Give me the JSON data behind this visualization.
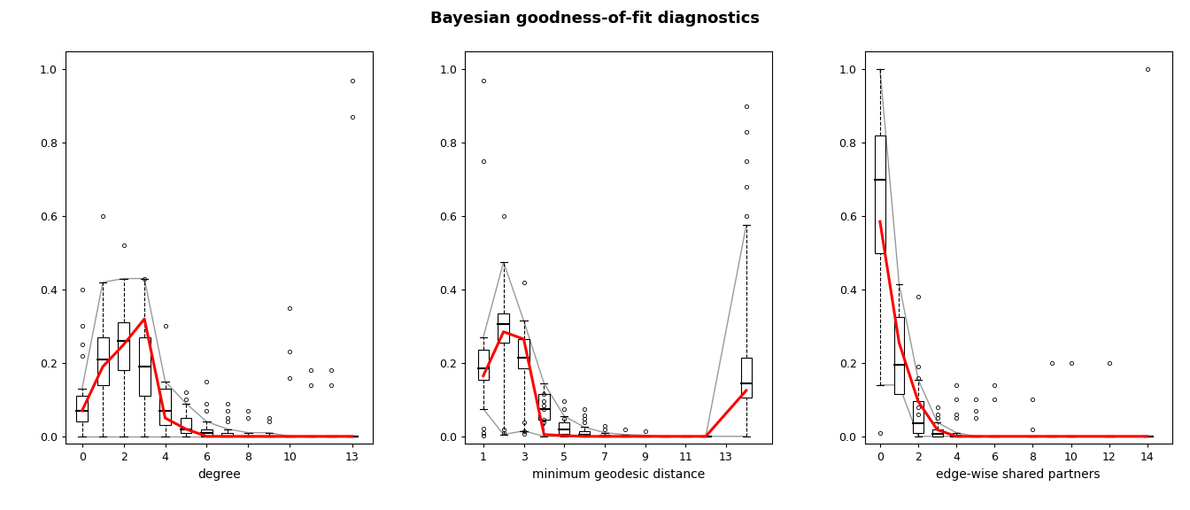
{
  "title": "Bayesian goodness-of-fit diagnostics",
  "title_fontsize": 13,
  "title_fontweight": "bold",
  "plots": [
    {
      "xlabel": "degree",
      "xticks": [
        0,
        2,
        4,
        6,
        8,
        10,
        13
      ],
      "xlim": [
        -0.8,
        14.0
      ],
      "ylim": [
        -0.02,
        1.05
      ],
      "yticks": [
        0.0,
        0.2,
        0.4,
        0.6,
        0.8,
        1.0
      ],
      "boxes": [
        {
          "x": 0,
          "q1": 0.04,
          "median": 0.07,
          "q3": 0.11,
          "whisker_low": 0.0,
          "whisker_high": 0.13,
          "outliers": [
            0.4,
            0.3,
            0.25,
            0.22
          ]
        },
        {
          "x": 1,
          "q1": 0.14,
          "median": 0.21,
          "q3": 0.27,
          "whisker_low": 0.0,
          "whisker_high": 0.42,
          "outliers": [
            0.6
          ]
        },
        {
          "x": 2,
          "q1": 0.18,
          "median": 0.26,
          "q3": 0.31,
          "whisker_low": 0.0,
          "whisker_high": 0.43,
          "outliers": [
            0.52
          ]
        },
        {
          "x": 3,
          "q1": 0.11,
          "median": 0.19,
          "q3": 0.27,
          "whisker_low": 0.0,
          "whisker_high": 0.43,
          "outliers": [
            0.43
          ]
        },
        {
          "x": 4,
          "q1": 0.03,
          "median": 0.07,
          "q3": 0.13,
          "whisker_low": 0.0,
          "whisker_high": 0.15,
          "outliers": [
            0.3
          ]
        },
        {
          "x": 5,
          "q1": 0.01,
          "median": 0.02,
          "q3": 0.05,
          "whisker_low": 0.0,
          "whisker_high": 0.09,
          "outliers": [
            0.12,
            0.1
          ]
        },
        {
          "x": 6,
          "q1": 0.0,
          "median": 0.01,
          "q3": 0.02,
          "whisker_low": 0.0,
          "whisker_high": 0.04,
          "outliers": [
            0.15,
            0.09,
            0.07
          ]
        },
        {
          "x": 7,
          "q1": 0.0,
          "median": 0.0,
          "q3": 0.01,
          "whisker_low": 0.0,
          "whisker_high": 0.02,
          "outliers": [
            0.09,
            0.07,
            0.05,
            0.04
          ]
        },
        {
          "x": 8,
          "q1": 0.0,
          "median": 0.0,
          "q3": 0.0,
          "whisker_low": 0.0,
          "whisker_high": 0.01,
          "outliers": [
            0.07,
            0.05
          ]
        },
        {
          "x": 9,
          "q1": 0.0,
          "median": 0.0,
          "q3": 0.0,
          "whisker_low": 0.0,
          "whisker_high": 0.01,
          "outliers": [
            0.05,
            0.04
          ]
        },
        {
          "x": 10,
          "q1": 0.0,
          "median": 0.0,
          "q3": 0.0,
          "whisker_low": 0.0,
          "whisker_high": 0.0,
          "outliers": [
            0.35,
            0.23,
            0.16
          ]
        },
        {
          "x": 11,
          "q1": 0.0,
          "median": 0.0,
          "q3": 0.0,
          "whisker_low": 0.0,
          "whisker_high": 0.0,
          "outliers": [
            0.18,
            0.14
          ]
        },
        {
          "x": 12,
          "q1": 0.0,
          "median": 0.0,
          "q3": 0.0,
          "whisker_low": 0.0,
          "whisker_high": 0.0,
          "outliers": [
            0.18,
            0.14
          ]
        },
        {
          "x": 13,
          "q1": 0.0,
          "median": 0.0,
          "q3": 0.0,
          "whisker_low": 0.0,
          "whisker_high": 0.0,
          "outliers": [
            0.97,
            0.87
          ]
        }
      ],
      "envelope_x": [
        0,
        1,
        2,
        3,
        4,
        5,
        6,
        7,
        8,
        9,
        10,
        11,
        12,
        13
      ],
      "envelope_upper": [
        0.13,
        0.42,
        0.43,
        0.43,
        0.15,
        0.09,
        0.04,
        0.02,
        0.01,
        0.01,
        0.0,
        0.0,
        0.0,
        0.0
      ],
      "envelope_lower": [
        0.0,
        0.0,
        0.0,
        0.0,
        0.0,
        0.0,
        0.0,
        0.0,
        0.0,
        0.0,
        0.0,
        0.0,
        0.0,
        0.0
      ],
      "red_line_x": [
        0,
        1,
        2,
        3,
        4,
        5,
        6,
        7,
        8,
        9,
        10,
        11,
        12,
        13
      ],
      "red_line_y": [
        0.07,
        0.19,
        0.25,
        0.32,
        0.05,
        0.02,
        0.0,
        0.0,
        0.0,
        0.0,
        0.0,
        0.0,
        0.0,
        0.0
      ]
    },
    {
      "xlabel": "minimum geodesic distance",
      "xticks": [
        1,
        3,
        5,
        7,
        9,
        11,
        13
      ],
      "xlim": [
        0.1,
        15.3
      ],
      "ylim": [
        -0.02,
        1.05
      ],
      "yticks": [
        0.0,
        0.2,
        0.4,
        0.6,
        0.8,
        1.0
      ],
      "boxes": [
        {
          "x": 1,
          "q1": 0.155,
          "median": 0.185,
          "q3": 0.235,
          "whisker_low": 0.075,
          "whisker_high": 0.27,
          "outliers": [
            0.97,
            0.75,
            0.022,
            0.01,
            0.003
          ]
        },
        {
          "x": 2,
          "q1": 0.255,
          "median": 0.305,
          "q3": 0.335,
          "whisker_low": 0.005,
          "whisker_high": 0.475,
          "outliers": [
            0.6,
            0.018,
            0.01
          ]
        },
        {
          "x": 3,
          "q1": 0.185,
          "median": 0.215,
          "q3": 0.265,
          "whisker_low": 0.015,
          "whisker_high": 0.315,
          "outliers": [
            0.42,
            0.038,
            0.015,
            0.008
          ]
        },
        {
          "x": 4,
          "q1": 0.045,
          "median": 0.075,
          "q3": 0.115,
          "whisker_low": 0.0,
          "whisker_high": 0.145,
          "outliers": [
            0.115,
            0.095,
            0.085,
            0.075,
            0.045,
            0.038
          ]
        },
        {
          "x": 5,
          "q1": 0.008,
          "median": 0.018,
          "q3": 0.038,
          "whisker_low": 0.0,
          "whisker_high": 0.055,
          "outliers": [
            0.095,
            0.075,
            0.048
          ]
        },
        {
          "x": 6,
          "q1": 0.0,
          "median": 0.005,
          "q3": 0.015,
          "whisker_low": 0.0,
          "whisker_high": 0.025,
          "outliers": [
            0.075,
            0.058,
            0.048,
            0.038
          ]
        },
        {
          "x": 7,
          "q1": 0.0,
          "median": 0.0,
          "q3": 0.005,
          "whisker_low": 0.0,
          "whisker_high": 0.01,
          "outliers": [
            0.028,
            0.018
          ]
        },
        {
          "x": 8,
          "q1": 0.0,
          "median": 0.0,
          "q3": 0.003,
          "whisker_low": 0.0,
          "whisker_high": 0.005,
          "outliers": [
            0.018
          ]
        },
        {
          "x": 9,
          "q1": 0.0,
          "median": 0.0,
          "q3": 0.0,
          "whisker_low": 0.0,
          "whisker_high": 0.003,
          "outliers": [
            0.015
          ]
        },
        {
          "x": 10,
          "q1": 0.0,
          "median": 0.0,
          "q3": 0.0,
          "whisker_low": 0.0,
          "whisker_high": 0.0,
          "outliers": []
        },
        {
          "x": 11,
          "q1": 0.0,
          "median": 0.0,
          "q3": 0.0,
          "whisker_low": 0.0,
          "whisker_high": 0.0,
          "outliers": []
        },
        {
          "x": 12,
          "q1": 0.0,
          "median": 0.0,
          "q3": 0.0,
          "whisker_low": 0.0,
          "whisker_high": 0.0,
          "outliers": []
        },
        {
          "x": 14,
          "q1": 0.105,
          "median": 0.145,
          "q3": 0.215,
          "whisker_low": 0.0,
          "whisker_high": 0.575,
          "outliers": [
            0.9,
            0.83,
            0.75,
            0.68,
            0.6
          ]
        }
      ],
      "envelope_x": [
        1,
        2,
        3,
        4,
        5,
        6,
        7,
        8,
        9,
        10,
        11,
        12,
        14
      ],
      "envelope_upper": [
        0.27,
        0.475,
        0.315,
        0.145,
        0.055,
        0.025,
        0.01,
        0.005,
        0.003,
        0.0,
        0.0,
        0.0,
        0.575
      ],
      "envelope_lower": [
        0.075,
        0.005,
        0.015,
        0.0,
        0.0,
        0.0,
        0.0,
        0.0,
        0.0,
        0.0,
        0.0,
        0.0,
        0.0
      ],
      "red_line_x": [
        1,
        2,
        3,
        4,
        5,
        6,
        7,
        8,
        9,
        10,
        11,
        12,
        14
      ],
      "red_line_y": [
        0.165,
        0.285,
        0.265,
        0.005,
        0.002,
        0.0,
        0.0,
        0.0,
        0.0,
        0.0,
        0.0,
        0.0,
        0.125
      ]
    },
    {
      "xlabel": "edge-wise shared partners",
      "xticks": [
        0,
        2,
        4,
        6,
        8,
        10,
        12,
        14
      ],
      "xlim": [
        -0.8,
        15.3
      ],
      "ylim": [
        -0.02,
        1.05
      ],
      "yticks": [
        0.0,
        0.2,
        0.4,
        0.6,
        0.8,
        1.0
      ],
      "boxes": [
        {
          "x": 0,
          "q1": 0.5,
          "median": 0.7,
          "q3": 0.82,
          "whisker_low": 0.14,
          "whisker_high": 1.0,
          "outliers": [
            0.01
          ]
        },
        {
          "x": 1,
          "q1": 0.115,
          "median": 0.195,
          "q3": 0.325,
          "whisker_low": 0.14,
          "whisker_high": 0.415,
          "outliers": []
        },
        {
          "x": 2,
          "q1": 0.01,
          "median": 0.035,
          "q3": 0.095,
          "whisker_low": 0.0,
          "whisker_high": 0.155,
          "outliers": [
            0.38,
            0.19,
            0.16,
            0.08,
            0.06
          ]
        },
        {
          "x": 3,
          "q1": 0.0,
          "median": 0.008,
          "q3": 0.018,
          "whisker_low": 0.0,
          "whisker_high": 0.038,
          "outliers": [
            0.08,
            0.06,
            0.05
          ]
        },
        {
          "x": 4,
          "q1": 0.0,
          "median": 0.0,
          "q3": 0.005,
          "whisker_low": 0.0,
          "whisker_high": 0.01,
          "outliers": [
            0.14,
            0.1,
            0.06,
            0.05
          ]
        },
        {
          "x": 5,
          "q1": 0.0,
          "median": 0.0,
          "q3": 0.0,
          "whisker_low": 0.0,
          "whisker_high": 0.0,
          "outliers": [
            0.1,
            0.07,
            0.05
          ]
        },
        {
          "x": 6,
          "q1": 0.0,
          "median": 0.0,
          "q3": 0.0,
          "whisker_low": 0.0,
          "whisker_high": 0.0,
          "outliers": [
            0.14,
            0.1
          ]
        },
        {
          "x": 8,
          "q1": 0.0,
          "median": 0.0,
          "q3": 0.0,
          "whisker_low": 0.0,
          "whisker_high": 0.0,
          "outliers": [
            0.1,
            0.02
          ]
        },
        {
          "x": 9,
          "q1": 0.0,
          "median": 0.0,
          "q3": 0.0,
          "whisker_low": 0.0,
          "whisker_high": 0.0,
          "outliers": [
            0.2
          ]
        },
        {
          "x": 10,
          "q1": 0.0,
          "median": 0.0,
          "q3": 0.0,
          "whisker_low": 0.0,
          "whisker_high": 0.0,
          "outliers": [
            0.2
          ]
        },
        {
          "x": 12,
          "q1": 0.0,
          "median": 0.0,
          "q3": 0.0,
          "whisker_low": 0.0,
          "whisker_high": 0.0,
          "outliers": [
            0.2
          ]
        },
        {
          "x": 14,
          "q1": 0.0,
          "median": 0.0,
          "q3": 0.0,
          "whisker_low": 0.0,
          "whisker_high": 0.0,
          "outliers": [
            1.0
          ]
        }
      ],
      "envelope_x": [
        0,
        1,
        2,
        3,
        4,
        5,
        6,
        8,
        9,
        10,
        12,
        14
      ],
      "envelope_upper": [
        1.0,
        0.415,
        0.155,
        0.038,
        0.01,
        0.0,
        0.0,
        0.0,
        0.0,
        0.0,
        0.0,
        0.0
      ],
      "envelope_lower": [
        0.14,
        0.14,
        0.0,
        0.0,
        0.0,
        0.0,
        0.0,
        0.0,
        0.0,
        0.0,
        0.0,
        0.0
      ],
      "red_line_x": [
        0,
        1,
        2,
        3,
        4,
        5,
        6,
        8,
        9,
        10,
        12,
        14
      ],
      "red_line_y": [
        0.585,
        0.255,
        0.095,
        0.018,
        0.0,
        0.0,
        0.0,
        0.0,
        0.0,
        0.0,
        0.0,
        0.0
      ]
    }
  ],
  "box_width": 0.55,
  "box_color": "white",
  "box_edgecolor": "black",
  "median_color": "black",
  "whisker_color": "black",
  "envelope_color": "#999999",
  "red_color": "#FF0000",
  "outlier_marker": "o",
  "outlier_markersize": 3,
  "outlier_facecolor": "none",
  "outlier_edgecolor": "black",
  "outlier_linewidth": 0.6,
  "background_color": "white"
}
